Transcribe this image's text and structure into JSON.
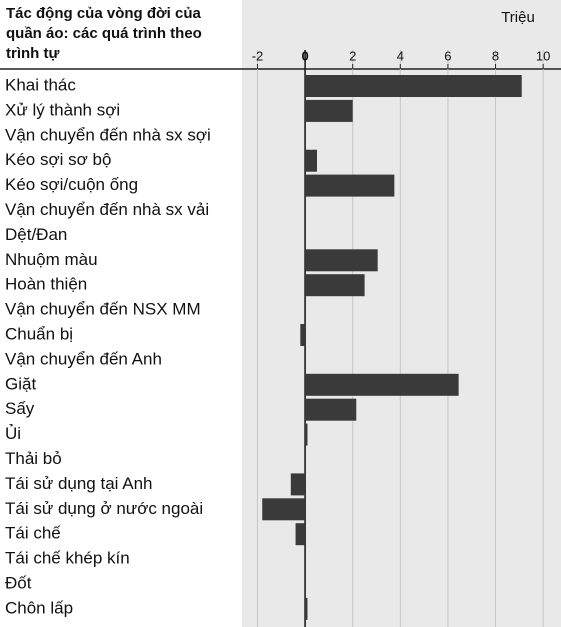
{
  "chart_data": {
    "type": "bar",
    "orientation": "horizontal",
    "title": "Tác động của vòng đời của quần áo: các quá trình theo trình tự",
    "unit_label": "Triệu",
    "categories": [
      "Khai thác",
      "Xử lý thành sợi",
      "Vận chuyển đến nhà sx sợi",
      "Kéo sợi sơ bộ",
      "Kéo sợi/cuộn ống",
      "Vận chuyển đến nhà sx vải",
      "Dệt/Đan",
      "Nhuộm màu",
      "Hoàn thiện",
      "Vận chuyển đến NSX MM",
      "Chuẩn bị",
      "Vận chuyển đến Anh",
      "Giặt",
      "Sấy",
      "Ủi",
      "Thải bỏ",
      "Tái sử dụng tại Anh",
      "Tái sử dụng ở nước ngoài",
      "Tái chế",
      "Tái chế khép kín",
      "Đốt",
      "Chôn lấp"
    ],
    "values": [
      9.1,
      2.0,
      0,
      0.5,
      3.75,
      0,
      0,
      3.05,
      2.5,
      0,
      -0.2,
      0,
      6.45,
      2.15,
      0.1,
      0,
      -0.6,
      -1.8,
      -0.4,
      0,
      0,
      0.1
    ],
    "color": "#3a3a3a",
    "xlim": [
      -2.65,
      10.75
    ],
    "xticks": [
      -2,
      0,
      2,
      4,
      6,
      8,
      10
    ],
    "grid": true
  }
}
